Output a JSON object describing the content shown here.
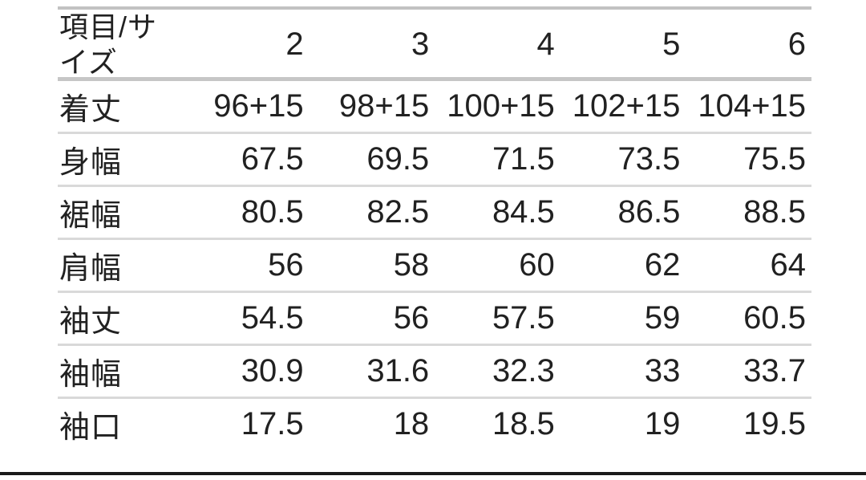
{
  "chart_data": {
    "type": "table",
    "columns": [
      "項目/サイズ",
      "2",
      "3",
      "4",
      "5",
      "6"
    ],
    "rows": [
      {
        "label": "着丈",
        "values": [
          "96+15",
          "98+15",
          "100+15",
          "102+15",
          "104+15"
        ]
      },
      {
        "label": "身幅",
        "values": [
          "67.5",
          "69.5",
          "71.5",
          "73.5",
          "75.5"
        ]
      },
      {
        "label": "裾幅",
        "values": [
          "80.5",
          "82.5",
          "84.5",
          "86.5",
          "88.5"
        ]
      },
      {
        "label": "肩幅",
        "values": [
          "56",
          "58",
          "60",
          "62",
          "64"
        ]
      },
      {
        "label": "袖丈",
        "values": [
          "54.5",
          "56",
          "57.5",
          "59",
          "60.5"
        ]
      },
      {
        "label": "袖幅",
        "values": [
          "30.9",
          "31.6",
          "32.3",
          "33",
          "33.7"
        ]
      },
      {
        "label": "袖口",
        "values": [
          "17.5",
          "18",
          "18.5",
          "19",
          "19.5"
        ]
      }
    ],
    "layout": {
      "grid": "horizontal-dividers-only",
      "value_alignment": "right",
      "header_row": true
    }
  },
  "colors": {
    "background": "#ffffff",
    "text": "#212121",
    "top_border": "#c2c2c2",
    "header_divider": "#c6c6c6",
    "divider": "#d9d9d9",
    "bottom_bar": "#1a1a1a"
  }
}
